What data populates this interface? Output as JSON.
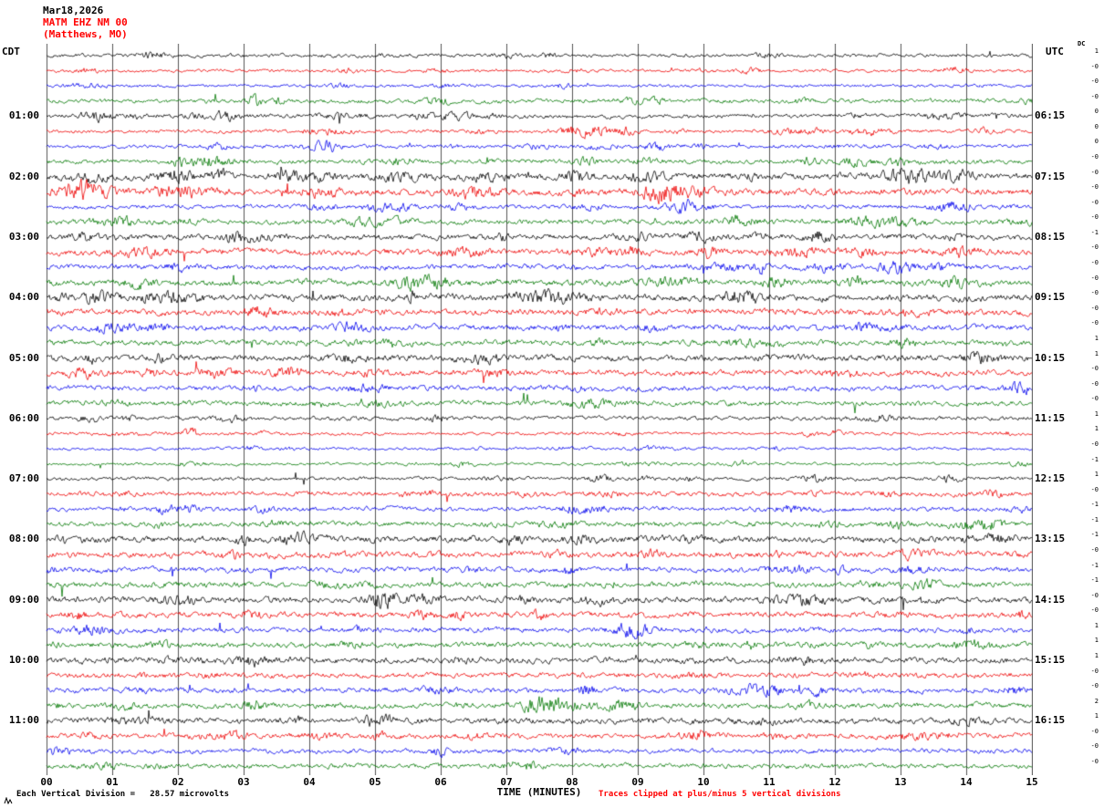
{
  "title": {
    "date": "Mar18,2026",
    "station": "MATM EHZ NM 00",
    "location": "(Matthews, MO)"
  },
  "axes": {
    "left_header": "CDT",
    "right_header": "UTC",
    "dc_label": "DC",
    "x_title": "TIME (MINUTES)",
    "x_ticks": [
      "00",
      "01",
      "02",
      "03",
      "04",
      "05",
      "06",
      "07",
      "08",
      "09",
      "10",
      "11",
      "12",
      "13",
      "14",
      "15"
    ]
  },
  "footer": {
    "scale_text": "Each Vertical Division =   28.57 microvolts",
    "clip_text": "Traces clipped at plus/minus 5 vertical divisions"
  },
  "chart_data": {
    "type": "line",
    "subtype": "helicorder-seismogram",
    "station": "MATM EHZ NM 00",
    "station_location": "Matthews, MO",
    "date": "Mar18,2026",
    "minutes_per_row": 15,
    "x_range_minutes": [
      0,
      15
    ],
    "rows_count": 48,
    "left_timezone": "CDT",
    "right_timezone": "UTC",
    "trace_color_cycle": [
      "#000000",
      "#ee0000",
      "#0000ee",
      "#007700"
    ],
    "grid": {
      "vertical_every_minutes": 1,
      "horizontal": false
    },
    "clip_divisions": 5,
    "microvolts_per_division": 28.57,
    "dc_values": [
      "1",
      "-0",
      "-0",
      "-0",
      "0",
      "0",
      "0",
      "-0",
      "-0",
      "-0",
      "-0",
      "-0",
      "-1",
      "-0",
      "-0",
      "-0",
      "-0",
      "-0",
      "-0",
      "1",
      "1",
      "-0",
      "-0",
      "-0",
      "1",
      "1",
      "-0",
      "-1",
      "1",
      "-0",
      "-1",
      "-1",
      "-1",
      "-0",
      "-1",
      "-1",
      "-0",
      "-0",
      "1",
      "1",
      "1",
      "-0",
      "-0",
      "2",
      "1",
      "-0",
      "-0",
      "-0"
    ],
    "rows": [
      {
        "color": "black",
        "left": "",
        "right": "",
        "amp": 0.7,
        "bursts": [
          {
            "m": 11.0,
            "w": 0.2,
            "a": 1.2
          }
        ]
      },
      {
        "color": "red",
        "left": "",
        "right": "",
        "amp": 0.6,
        "bursts": [
          {
            "m": 4.6,
            "w": 0.15,
            "a": 1.3
          },
          {
            "m": 8.1,
            "w": 0.15,
            "a": 1.2
          }
        ]
      },
      {
        "color": "blue",
        "left": "",
        "right": "",
        "amp": 0.6,
        "bursts": [
          {
            "m": 4.5,
            "w": 0.2,
            "a": 1.2
          }
        ]
      },
      {
        "color": "green",
        "left": "",
        "right": "",
        "amp": 0.8,
        "bursts": [
          {
            "m": 5.9,
            "w": 0.2,
            "a": 1.5
          },
          {
            "m": 9.3,
            "w": 0.15,
            "a": 1.2
          },
          {
            "m": 11.5,
            "w": 0.2,
            "a": 1.1
          }
        ]
      },
      {
        "color": "black",
        "left": "01:00",
        "right": "06:15",
        "amp": 0.8,
        "bursts": [
          {
            "m": 0.7,
            "w": 0.25,
            "a": 2.5
          },
          {
            "m": 2.7,
            "w": 0.2,
            "a": 1.8
          },
          {
            "m": 6.2,
            "w": 0.3,
            "a": 1.6
          },
          {
            "m": 13.5,
            "w": 0.2,
            "a": 1.2
          }
        ]
      },
      {
        "color": "red",
        "left": "",
        "right": "",
        "amp": 0.7,
        "bursts": [
          {
            "m": 8.2,
            "w": 0.35,
            "a": 3.2
          },
          {
            "m": 8.8,
            "w": 0.2,
            "a": 2.0
          },
          {
            "m": 11.7,
            "w": 0.15,
            "a": 1.5
          }
        ]
      },
      {
        "color": "blue",
        "left": "",
        "right": "",
        "amp": 0.7,
        "bursts": [
          {
            "m": 2.6,
            "w": 0.2,
            "a": 1.8
          },
          {
            "m": 4.3,
            "w": 0.15,
            "a": 1.4
          },
          {
            "m": 7.5,
            "w": 0.2,
            "a": 1.4
          },
          {
            "m": 9.3,
            "w": 0.25,
            "a": 1.6
          },
          {
            "m": 13.5,
            "w": 0.2,
            "a": 1.4
          }
        ]
      },
      {
        "color": "green",
        "left": "",
        "right": "",
        "amp": 0.9,
        "bursts": [
          {
            "m": 2.5,
            "w": 0.3,
            "a": 2.6
          },
          {
            "m": 5.4,
            "w": 0.2,
            "a": 1.5
          },
          {
            "m": 8.2,
            "w": 0.2,
            "a": 1.4
          },
          {
            "m": 12.3,
            "w": 0.25,
            "a": 1.4
          }
        ]
      },
      {
        "color": "black",
        "left": "02:00",
        "right": "07:15",
        "amp": 1.2,
        "bursts": [
          {
            "m": 1.9,
            "w": 0.3,
            "a": 2.0
          },
          {
            "m": 2.6,
            "w": 0.2,
            "a": 1.6
          },
          {
            "m": 5.4,
            "w": 0.3,
            "a": 1.5
          },
          {
            "m": 9.1,
            "w": 0.3,
            "a": 1.4
          },
          {
            "m": 13.2,
            "w": 0.4,
            "a": 1.5
          }
        ]
      },
      {
        "color": "red",
        "left": "",
        "right": "",
        "amp": 1.3,
        "bursts": [
          {
            "m": 0.7,
            "w": 0.3,
            "a": 1.8
          },
          {
            "m": 2.0,
            "w": 0.4,
            "a": 1.6
          },
          {
            "m": 4.2,
            "w": 0.3,
            "a": 1.5
          },
          {
            "m": 6.5,
            "w": 0.3,
            "a": 1.4
          },
          {
            "m": 9.5,
            "w": 0.5,
            "a": 2.2
          }
        ]
      },
      {
        "color": "blue",
        "left": "",
        "right": "",
        "amp": 0.8,
        "bursts": [
          {
            "m": 6.3,
            "w": 0.2,
            "a": 1.5
          },
          {
            "m": 9.6,
            "w": 0.25,
            "a": 1.6
          },
          {
            "m": 13.8,
            "w": 0.3,
            "a": 2.2
          }
        ]
      },
      {
        "color": "green",
        "left": "",
        "right": "",
        "amp": 1.0,
        "bursts": [
          {
            "m": 4.8,
            "w": 0.3,
            "a": 1.5
          },
          {
            "m": 10.6,
            "w": 0.3,
            "a": 1.4
          },
          {
            "m": 12.5,
            "w": 0.4,
            "a": 1.6
          }
        ]
      },
      {
        "color": "black",
        "left": "03:00",
        "right": "08:15",
        "amp": 1.1,
        "bursts": [
          {
            "m": 3.2,
            "w": 0.3,
            "a": 1.2
          },
          {
            "m": 9.0,
            "w": 0.3,
            "a": 1.1
          }
        ]
      },
      {
        "color": "red",
        "left": "",
        "right": "",
        "amp": 1.2,
        "bursts": [
          {
            "m": 1.5,
            "w": 0.3,
            "a": 1.2
          },
          {
            "m": 6.4,
            "w": 0.3,
            "a": 1.2
          },
          {
            "m": 12.4,
            "w": 0.3,
            "a": 1.1
          }
        ]
      },
      {
        "color": "blue",
        "left": "",
        "right": "",
        "amp": 1.0,
        "bursts": [
          {
            "m": 10.3,
            "w": 0.3,
            "a": 1.2
          }
        ]
      },
      {
        "color": "green",
        "left": "",
        "right": "",
        "amp": 1.2,
        "bursts": [
          {
            "m": 6.0,
            "w": 0.3,
            "a": 1.2
          },
          {
            "m": 9.5,
            "w": 0.4,
            "a": 1.2
          }
        ]
      },
      {
        "color": "black",
        "left": "04:00",
        "right": "09:15",
        "amp": 1.3,
        "bursts": [
          {
            "m": 2.0,
            "w": 0.4,
            "a": 1.1
          },
          {
            "m": 7.8,
            "w": 0.4,
            "a": 1.1
          }
        ]
      },
      {
        "color": "red",
        "left": "",
        "right": "",
        "amp": 1.2,
        "bursts": []
      },
      {
        "color": "blue",
        "left": "",
        "right": "",
        "amp": 1.1,
        "bursts": [
          {
            "m": 1.0,
            "w": 0.3,
            "a": 1.2
          }
        ]
      },
      {
        "color": "green",
        "left": "",
        "right": "",
        "amp": 1.1,
        "bursts": []
      },
      {
        "color": "black",
        "left": "05:00",
        "right": "10:15",
        "amp": 1.2,
        "bursts": [
          {
            "m": 14.2,
            "w": 0.25,
            "a": 1.5
          }
        ]
      },
      {
        "color": "red",
        "left": "",
        "right": "",
        "amp": 1.1,
        "bursts": [
          {
            "m": 2.6,
            "w": 0.3,
            "a": 1.3
          }
        ]
      },
      {
        "color": "blue",
        "left": "",
        "right": "",
        "amp": 1.0,
        "bursts": []
      },
      {
        "color": "green",
        "left": "",
        "right": "",
        "amp": 1.0,
        "bursts": []
      },
      {
        "color": "black",
        "left": "06:00",
        "right": "11:15",
        "amp": 0.8,
        "bursts": []
      },
      {
        "color": "red",
        "left": "",
        "right": "",
        "amp": 0.6,
        "bursts": [
          {
            "m": 2.2,
            "w": 0.12,
            "a": 3.0
          }
        ]
      },
      {
        "color": "blue",
        "left": "",
        "right": "",
        "amp": 0.55,
        "bursts": [
          {
            "m": 6.6,
            "w": 0.1,
            "a": 1.5
          }
        ]
      },
      {
        "color": "green",
        "left": "",
        "right": "",
        "amp": 0.55,
        "bursts": []
      },
      {
        "color": "black",
        "left": "07:00",
        "right": "12:15",
        "amp": 0.7,
        "bursts": [
          {
            "m": 11.7,
            "w": 0.2,
            "a": 2.2
          }
        ]
      },
      {
        "color": "red",
        "left": "",
        "right": "",
        "amp": 0.9,
        "bursts": []
      },
      {
        "color": "blue",
        "left": "",
        "right": "",
        "amp": 0.9,
        "bursts": [
          {
            "m": 8.3,
            "w": 0.3,
            "a": 1.2
          }
        ]
      },
      {
        "color": "green",
        "left": "",
        "right": "",
        "amp": 1.0,
        "bursts": []
      },
      {
        "color": "black",
        "left": "08:00",
        "right": "13:15",
        "amp": 1.3,
        "bursts": [
          {
            "m": 14.4,
            "w": 0.3,
            "a": 1.3
          }
        ]
      },
      {
        "color": "red",
        "left": "",
        "right": "",
        "amp": 1.2,
        "bursts": []
      },
      {
        "color": "blue",
        "left": "",
        "right": "",
        "amp": 1.0,
        "bursts": [
          {
            "m": 11.3,
            "w": 0.3,
            "a": 1.3
          }
        ]
      },
      {
        "color": "green",
        "left": "",
        "right": "",
        "amp": 1.1,
        "bursts": []
      },
      {
        "color": "black",
        "left": "09:00",
        "right": "14:15",
        "amp": 1.2,
        "bursts": [
          {
            "m": 2.0,
            "w": 0.3,
            "a": 1.2
          }
        ]
      },
      {
        "color": "red",
        "left": "",
        "right": "",
        "amp": 1.1,
        "bursts": []
      },
      {
        "color": "blue",
        "left": "",
        "right": "",
        "amp": 1.0,
        "bursts": []
      },
      {
        "color": "green",
        "left": "",
        "right": "",
        "amp": 1.1,
        "bursts": []
      },
      {
        "color": "black",
        "left": "10:00",
        "right": "15:15",
        "amp": 1.2,
        "bursts": []
      },
      {
        "color": "red",
        "left": "",
        "right": "",
        "amp": 1.0,
        "bursts": []
      },
      {
        "color": "blue",
        "left": "",
        "right": "",
        "amp": 1.0,
        "bursts": []
      },
      {
        "color": "green",
        "left": "",
        "right": "",
        "amp": 1.0,
        "bursts": [
          {
            "m": 7.7,
            "w": 0.35,
            "a": 3.0
          },
          {
            "m": 8.8,
            "w": 0.2,
            "a": 1.6
          }
        ]
      },
      {
        "color": "black",
        "left": "11:00",
        "right": "16:15",
        "amp": 1.2,
        "bursts": []
      },
      {
        "color": "red",
        "left": "",
        "right": "",
        "amp": 1.0,
        "bursts": [
          {
            "m": 2.8,
            "w": 0.2,
            "a": 1.6
          },
          {
            "m": 9.9,
            "w": 0.25,
            "a": 1.5
          }
        ]
      },
      {
        "color": "blue",
        "left": "",
        "right": "",
        "amp": 0.9,
        "bursts": []
      },
      {
        "color": "green",
        "left": "",
        "right": "",
        "amp": 0.9,
        "bursts": []
      }
    ]
  }
}
